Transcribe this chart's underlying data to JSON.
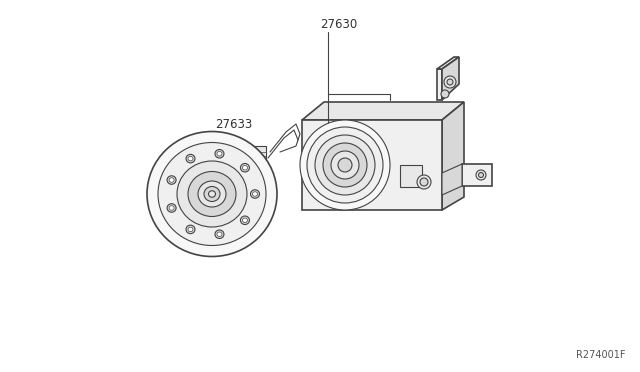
{
  "bg_color": "#ffffff",
  "line_color": "#444444",
  "label_color": "#333333",
  "part_number_27630": "27630",
  "part_number_27633": "27633",
  "ref_code": "R274001F",
  "lw": 0.8,
  "lw_thick": 1.2
}
